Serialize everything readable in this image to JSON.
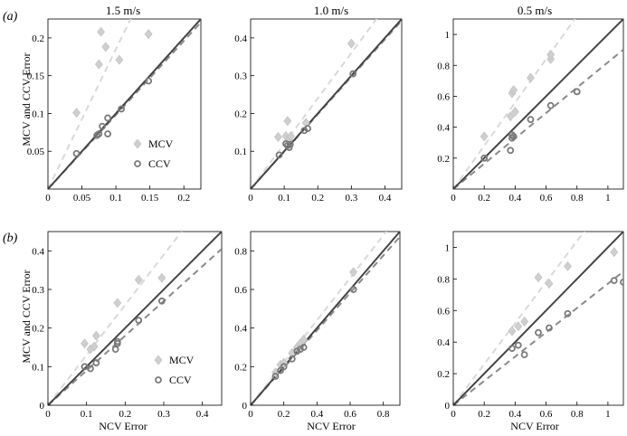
{
  "figure": {
    "titles": [
      "1.5 m/s",
      "1.0 m/s",
      "0.5 m/s"
    ],
    "row_labels": [
      "(a)",
      "(b)"
    ],
    "ylabel": "MCV and CCV Error",
    "xlabel": "NCV Error",
    "legend": [
      "MCV",
      "CCV"
    ],
    "colors": {
      "mcv": "#cfcfcf",
      "ccv": "#7a7a7a",
      "identity": "#444444",
      "mcv_line": "#d9d9d9",
      "ccv_line": "#8a8a8a"
    }
  },
  "chart_data": [
    {
      "type": "scatter",
      "row": "(a)",
      "title": "1.5 m/s",
      "xlim": [
        0,
        0.225
      ],
      "ylim": [
        0,
        0.225
      ],
      "xticks": [
        0,
        0.05,
        0.1,
        0.15,
        0.2
      ],
      "xtick_labels": [
        "0",
        "0.05",
        "0.1",
        "0.15",
        "0.2"
      ],
      "yticks": [
        0.05,
        0.1,
        0.15,
        0.2
      ],
      "ytick_labels": [
        "0.05",
        "0.1",
        "0.15",
        "0.2"
      ],
      "legend_shown": true,
      "xlabel_shown": false,
      "series": [
        {
          "name": "MCV",
          "points": [
            [
              0.042,
              0.101
            ],
            [
              0.075,
              0.165
            ],
            [
              0.078,
              0.208
            ],
            [
              0.085,
              0.188
            ],
            [
              0.105,
              0.171
            ],
            [
              0.148,
              0.205
            ]
          ],
          "fit_slope": 1.85
        },
        {
          "name": "CCV",
          "points": [
            [
              0.042,
              0.047
            ],
            [
              0.072,
              0.071
            ],
            [
              0.075,
              0.073
            ],
            [
              0.08,
              0.083
            ],
            [
              0.088,
              0.073
            ],
            [
              0.088,
              0.094
            ],
            [
              0.108,
              0.106
            ],
            [
              0.148,
              0.143
            ]
          ],
          "fit_slope": 0.98
        }
      ]
    },
    {
      "type": "scatter",
      "row": "(a)",
      "title": "1.0 m/s",
      "xlim": [
        0,
        0.45
      ],
      "ylim": [
        0,
        0.45
      ],
      "xticks": [
        0,
        0.1,
        0.2,
        0.3,
        0.4
      ],
      "xtick_labels": [
        "0",
        "0.1",
        "0.2",
        "0.3",
        "0.4"
      ],
      "yticks": [
        0.1,
        0.2,
        0.3,
        0.4
      ],
      "ytick_labels": [
        "0.1",
        "0.2",
        "0.3",
        "0.4"
      ],
      "legend_shown": false,
      "xlabel_shown": false,
      "series": [
        {
          "name": "MCV",
          "points": [
            [
              0.082,
              0.138
            ],
            [
              0.105,
              0.14
            ],
            [
              0.11,
              0.18
            ],
            [
              0.115,
              0.13
            ],
            [
              0.12,
              0.14
            ],
            [
              0.165,
              0.175
            ],
            [
              0.3,
              0.385
            ]
          ],
          "fit_slope": 1.2
        },
        {
          "name": "CCV",
          "points": [
            [
              0.085,
              0.09
            ],
            [
              0.105,
              0.12
            ],
            [
              0.11,
              0.115
            ],
            [
              0.115,
              0.11
            ],
            [
              0.118,
              0.118
            ],
            [
              0.16,
              0.155
            ],
            [
              0.17,
              0.16
            ],
            [
              0.305,
              0.305
            ]
          ],
          "fit_slope": 0.99
        }
      ]
    },
    {
      "type": "scatter",
      "row": "(a)",
      "title": "0.5 m/s",
      "xlim": [
        0,
        1.1
      ],
      "ylim": [
        0,
        1.1
      ],
      "xticks": [
        0,
        0.2,
        0.4,
        0.6,
        0.8,
        1
      ],
      "xtick_labels": [
        "0",
        "0.2",
        "0.4",
        "0.6",
        "0.8",
        "1"
      ],
      "yticks": [
        0.2,
        0.4,
        0.6,
        0.8,
        1
      ],
      "ytick_labels": [
        "0.2",
        "0.4",
        "0.6",
        "0.8",
        "1"
      ],
      "legend_shown": false,
      "xlabel_shown": false,
      "series": [
        {
          "name": "MCV",
          "points": [
            [
              0.2,
              0.34
            ],
            [
              0.37,
              0.47
            ],
            [
              0.38,
              0.62
            ],
            [
              0.39,
              0.64
            ],
            [
              0.4,
              0.5
            ],
            [
              0.5,
              0.72
            ],
            [
              0.63,
              0.84
            ],
            [
              0.63,
              0.87
            ]
          ],
          "fit_slope": 1.4
        },
        {
          "name": "CCV",
          "points": [
            [
              0.2,
              0.2
            ],
            [
              0.37,
              0.25
            ],
            [
              0.38,
              0.33
            ],
            [
              0.38,
              0.35
            ],
            [
              0.39,
              0.34
            ],
            [
              0.5,
              0.45
            ],
            [
              0.63,
              0.54
            ],
            [
              0.8,
              0.63
            ]
          ],
          "fit_slope": 0.82
        }
      ]
    },
    {
      "type": "scatter",
      "row": "(b)",
      "title": "",
      "xlim": [
        0,
        0.45
      ],
      "ylim": [
        0,
        0.45
      ],
      "xticks": [
        0,
        0.1,
        0.2,
        0.3,
        0.4
      ],
      "xtick_labels": [
        "0",
        "0.1",
        "0.2",
        "0.3",
        "0.4"
      ],
      "yticks": [
        0,
        0.1,
        0.2,
        0.3,
        0.4
      ],
      "ytick_labels": [
        "0",
        "0.1",
        "0.2",
        "0.3",
        "0.4"
      ],
      "legend_shown": true,
      "xlabel_shown": true,
      "series": [
        {
          "name": "MCV",
          "points": [
            [
              0.095,
              0.16
            ],
            [
              0.11,
              0.145
            ],
            [
              0.12,
              0.152
            ],
            [
              0.125,
              0.18
            ],
            [
              0.18,
              0.265
            ],
            [
              0.235,
              0.325
            ],
            [
              0.295,
              0.33
            ]
          ],
          "fit_slope": 1.3
        },
        {
          "name": "CCV",
          "points": [
            [
              0.095,
              0.1
            ],
            [
              0.11,
              0.095
            ],
            [
              0.125,
              0.11
            ],
            [
              0.175,
              0.145
            ],
            [
              0.18,
              0.16
            ],
            [
              0.18,
              0.165
            ],
            [
              0.235,
              0.22
            ],
            [
              0.295,
              0.27
            ]
          ],
          "fit_slope": 0.9
        }
      ]
    },
    {
      "type": "scatter",
      "row": "(b)",
      "title": "",
      "xlim": [
        0,
        0.9
      ],
      "ylim": [
        0,
        0.9
      ],
      "xticks": [
        0,
        0.2,
        0.4,
        0.6,
        0.8
      ],
      "xtick_labels": [
        "0",
        "0.2",
        "0.4",
        "0.6",
        "0.8"
      ],
      "yticks": [
        0,
        0.2,
        0.4,
        0.6,
        0.8
      ],
      "ytick_labels": [
        "0",
        "0.2",
        "0.4",
        "0.6",
        "0.8"
      ],
      "legend_shown": false,
      "xlabel_shown": true,
      "series": [
        {
          "name": "MCV",
          "points": [
            [
              0.15,
              0.17
            ],
            [
              0.18,
              0.21
            ],
            [
              0.2,
              0.22
            ],
            [
              0.25,
              0.27
            ],
            [
              0.28,
              0.3
            ],
            [
              0.3,
              0.32
            ],
            [
              0.32,
              0.34
            ],
            [
              0.62,
              0.69
            ]
          ],
          "fit_slope": 1.1
        },
        {
          "name": "CCV",
          "points": [
            [
              0.15,
              0.15
            ],
            [
              0.18,
              0.18
            ],
            [
              0.2,
              0.2
            ],
            [
              0.25,
              0.24
            ],
            [
              0.28,
              0.28
            ],
            [
              0.3,
              0.29
            ],
            [
              0.32,
              0.3
            ],
            [
              0.62,
              0.6
            ]
          ],
          "fit_slope": 0.97
        }
      ]
    },
    {
      "type": "scatter",
      "row": "(b)",
      "title": "",
      "xlim": [
        0,
        1.1
      ],
      "ylim": [
        0,
        1.1
      ],
      "xticks": [
        0,
        0.2,
        0.4,
        0.6,
        0.8,
        1
      ],
      "xtick_labels": [
        "0",
        "0.2",
        "0.4",
        "0.6",
        "0.8",
        "1"
      ],
      "yticks": [
        0,
        0.2,
        0.4,
        0.6,
        0.8,
        1
      ],
      "ytick_labels": [
        "0",
        "0.2",
        "0.4",
        "0.6",
        "0.8",
        "1"
      ],
      "legend_shown": false,
      "xlabel_shown": true,
      "series": [
        {
          "name": "MCV",
          "points": [
            [
              0.38,
              0.47
            ],
            [
              0.42,
              0.5
            ],
            [
              0.46,
              0.53
            ],
            [
              0.55,
              0.81
            ],
            [
              0.62,
              0.77
            ],
            [
              0.74,
              0.88
            ],
            [
              1.04,
              0.97
            ]
          ],
          "fit_slope": 1.3
        },
        {
          "name": "CCV",
          "points": [
            [
              0.38,
              0.36
            ],
            [
              0.42,
              0.38
            ],
            [
              0.46,
              0.32
            ],
            [
              0.55,
              0.46
            ],
            [
              0.62,
              0.49
            ],
            [
              0.74,
              0.58
            ],
            [
              1.04,
              0.79
            ],
            [
              1.1,
              0.78
            ]
          ],
          "fit_slope": 0.77
        }
      ]
    }
  ]
}
